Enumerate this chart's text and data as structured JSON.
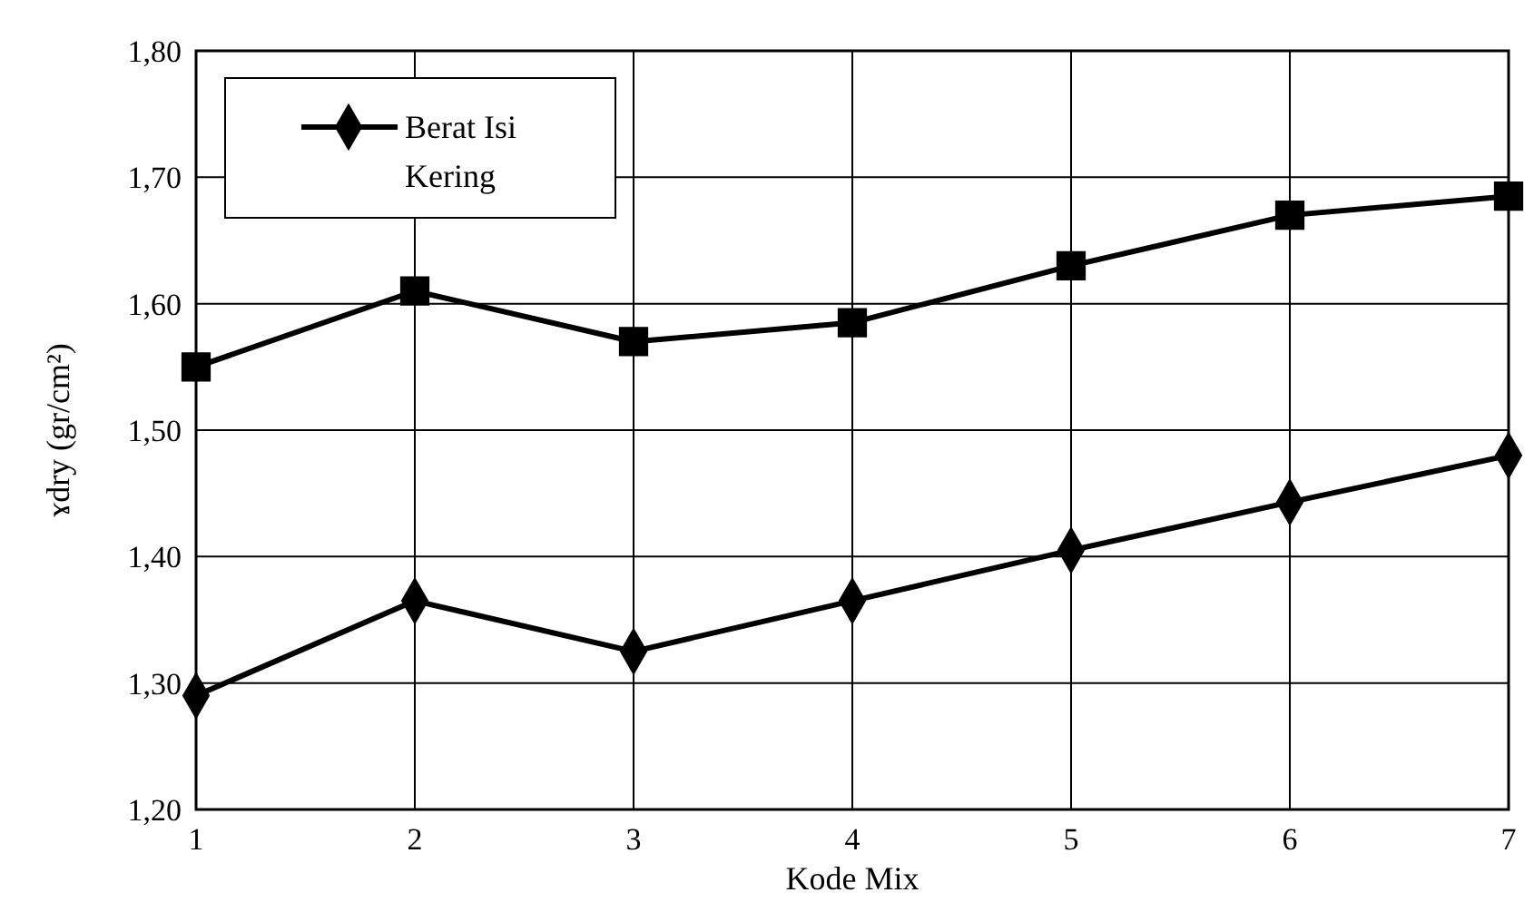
{
  "chart_data": {
    "type": "line",
    "xlabel": "Kode Mix",
    "ylabel": "ɤdry (gr/cm²)",
    "x": [
      1,
      2,
      3,
      4,
      5,
      6,
      7
    ],
    "xlim": [
      1,
      7
    ],
    "xticks": [
      1,
      2,
      3,
      4,
      5,
      6,
      7
    ],
    "ylim": [
      1.2,
      1.8
    ],
    "yticks": [
      {
        "value": 1.2,
        "label": "1,20"
      },
      {
        "value": 1.3,
        "label": "1,30"
      },
      {
        "value": 1.4,
        "label": "1,40"
      },
      {
        "value": 1.5,
        "label": "1,50"
      },
      {
        "value": 1.6,
        "label": "1,60"
      },
      {
        "value": 1.7,
        "label": "1,70"
      },
      {
        "value": 1.8,
        "label": "1,80"
      }
    ],
    "grid": true,
    "legend": "top left",
    "line_style": "solid",
    "series": [
      {
        "name": "Berat Isi Kering",
        "color": "#000000",
        "marker": "diamond",
        "values": [
          1.29,
          1.365,
          1.325,
          1.365,
          1.405,
          1.443,
          1.48
        ]
      },
      {
        "color": "#000000",
        "marker": "square",
        "values": [
          1.55,
          1.61,
          1.57,
          1.585,
          1.63,
          1.67,
          1.685
        ]
      }
    ]
  }
}
